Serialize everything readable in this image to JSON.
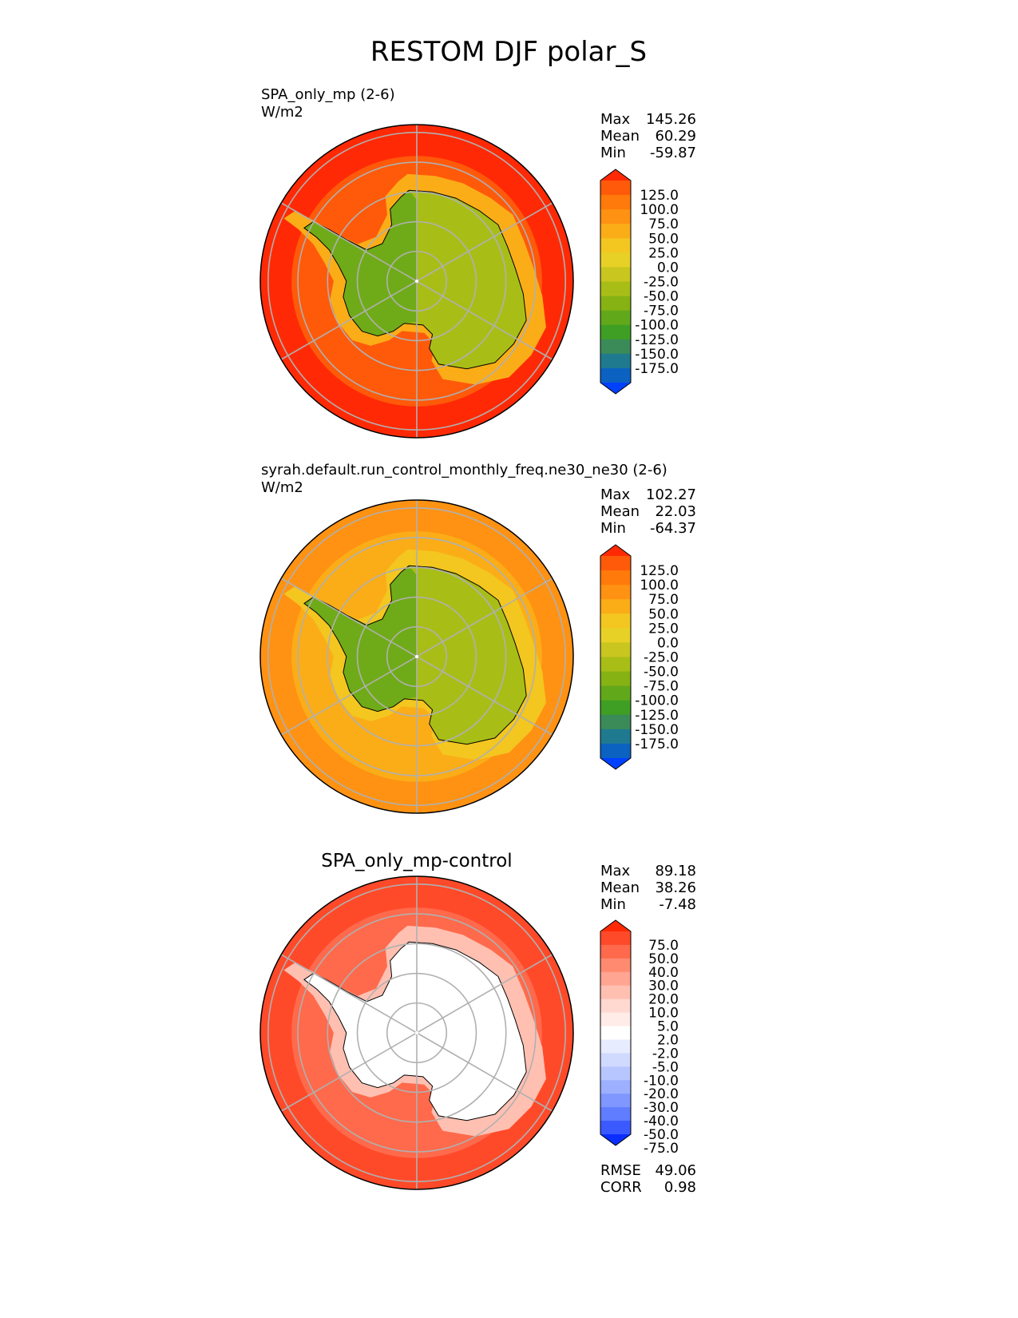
{
  "figure_title": "RESTOM DJF polar_S",
  "chart_data": [
    {
      "type": "heatmap",
      "projection": "south-polar-stereographic",
      "title": "",
      "name_label": "SPA_only_mp (2-6)",
      "units": "W/m2",
      "stats": [
        {
          "label": "Max",
          "value": "145.26"
        },
        {
          "label": "Mean",
          "value": "60.29"
        },
        {
          "label": "Min",
          "value": "-59.87"
        }
      ],
      "colorbar": {
        "ticks": [
          "125.0",
          "100.0",
          "75.0",
          "50.0",
          "25.0",
          "0.0",
          "-25.0",
          "-50.0",
          "-75.0",
          "-100.0",
          "-125.0",
          "-150.0",
          "-175.0"
        ],
        "colors": [
          "#ff2a05",
          "#ff5a0a",
          "#ff7a0a",
          "#ff9212",
          "#fbad18",
          "#f3c620",
          "#e8d126",
          "#c8c61f",
          "#a8be17",
          "#86b214",
          "#62a81b",
          "#3f9f24",
          "#3b8b58",
          "#1f7a8f",
          "#0c62c0",
          "#0040ff"
        ],
        "extend": "both"
      },
      "fields": {
        "ocean_outer": "#ff2a05",
        "ocean_mid": "#ff5a0a",
        "ocean_inner": "#fbad18",
        "land": "#a8be17",
        "land_west": "#6fab18"
      },
      "extra_stats": []
    },
    {
      "type": "heatmap",
      "projection": "south-polar-stereographic",
      "title": "",
      "name_label": "syrah.default.run_control_monthly_freq.ne30_ne30 (2-6)",
      "units": "W/m2",
      "stats": [
        {
          "label": "Max",
          "value": "102.27"
        },
        {
          "label": "Mean",
          "value": "22.03"
        },
        {
          "label": "Min",
          "value": "-64.37"
        }
      ],
      "colorbar": {
        "ticks": [
          "125.0",
          "100.0",
          "75.0",
          "50.0",
          "25.0",
          "0.0",
          "-25.0",
          "-50.0",
          "-75.0",
          "-100.0",
          "-125.0",
          "-150.0",
          "-175.0"
        ],
        "colors": [
          "#ff2a05",
          "#ff5a0a",
          "#ff7a0a",
          "#ff9212",
          "#fbad18",
          "#f3c620",
          "#e8d126",
          "#c8c61f",
          "#a8be17",
          "#86b214",
          "#62a81b",
          "#3f9f24",
          "#3b8b58",
          "#1f7a8f",
          "#0c62c0",
          "#0040ff"
        ],
        "extend": "both"
      },
      "fields": {
        "ocean_outer": "#ff9212",
        "ocean_mid": "#fbad18",
        "ocean_inner": "#f3c620",
        "land": "#a8be17",
        "land_west": "#6fab18"
      },
      "extra_stats": []
    },
    {
      "type": "heatmap",
      "projection": "south-polar-stereographic",
      "title": "SPA_only_mp-control",
      "name_label": "",
      "units": "",
      "stats": [
        {
          "label": "Max",
          "value": "89.18"
        },
        {
          "label": "Mean",
          "value": "38.26"
        },
        {
          "label": "Min",
          "value": "-7.48"
        }
      ],
      "colorbar": {
        "ticks": [
          "75.0",
          "50.0",
          "40.0",
          "30.0",
          "20.0",
          "10.0",
          "5.0",
          "2.0",
          "-2.0",
          "-5.0",
          "-10.0",
          "-20.0",
          "-30.0",
          "-40.0",
          "-50.0",
          "-75.0"
        ],
        "colors": [
          "#ff2a05",
          "#ff4a2a",
          "#ff6a4c",
          "#ff8a70",
          "#ffa592",
          "#ffc0b2",
          "#ffd8d0",
          "#ffece8",
          "#ffffff",
          "#e8ecff",
          "#d0daff",
          "#b8c6ff",
          "#9cb0ff",
          "#7f97ff",
          "#607cff",
          "#3a5aff",
          "#0a2eff"
        ],
        "extend": "both"
      },
      "fields": {
        "ocean_outer": "#ff4a2a",
        "ocean_mid": "#ff6a4c",
        "ocean_inner": "#ffc0b2",
        "land": "#ffffff",
        "land_west": "#ffffff"
      },
      "extra_stats": [
        {
          "label": "RMSE",
          "value": "49.06"
        },
        {
          "label": "CORR",
          "value": "0.98"
        }
      ]
    }
  ]
}
